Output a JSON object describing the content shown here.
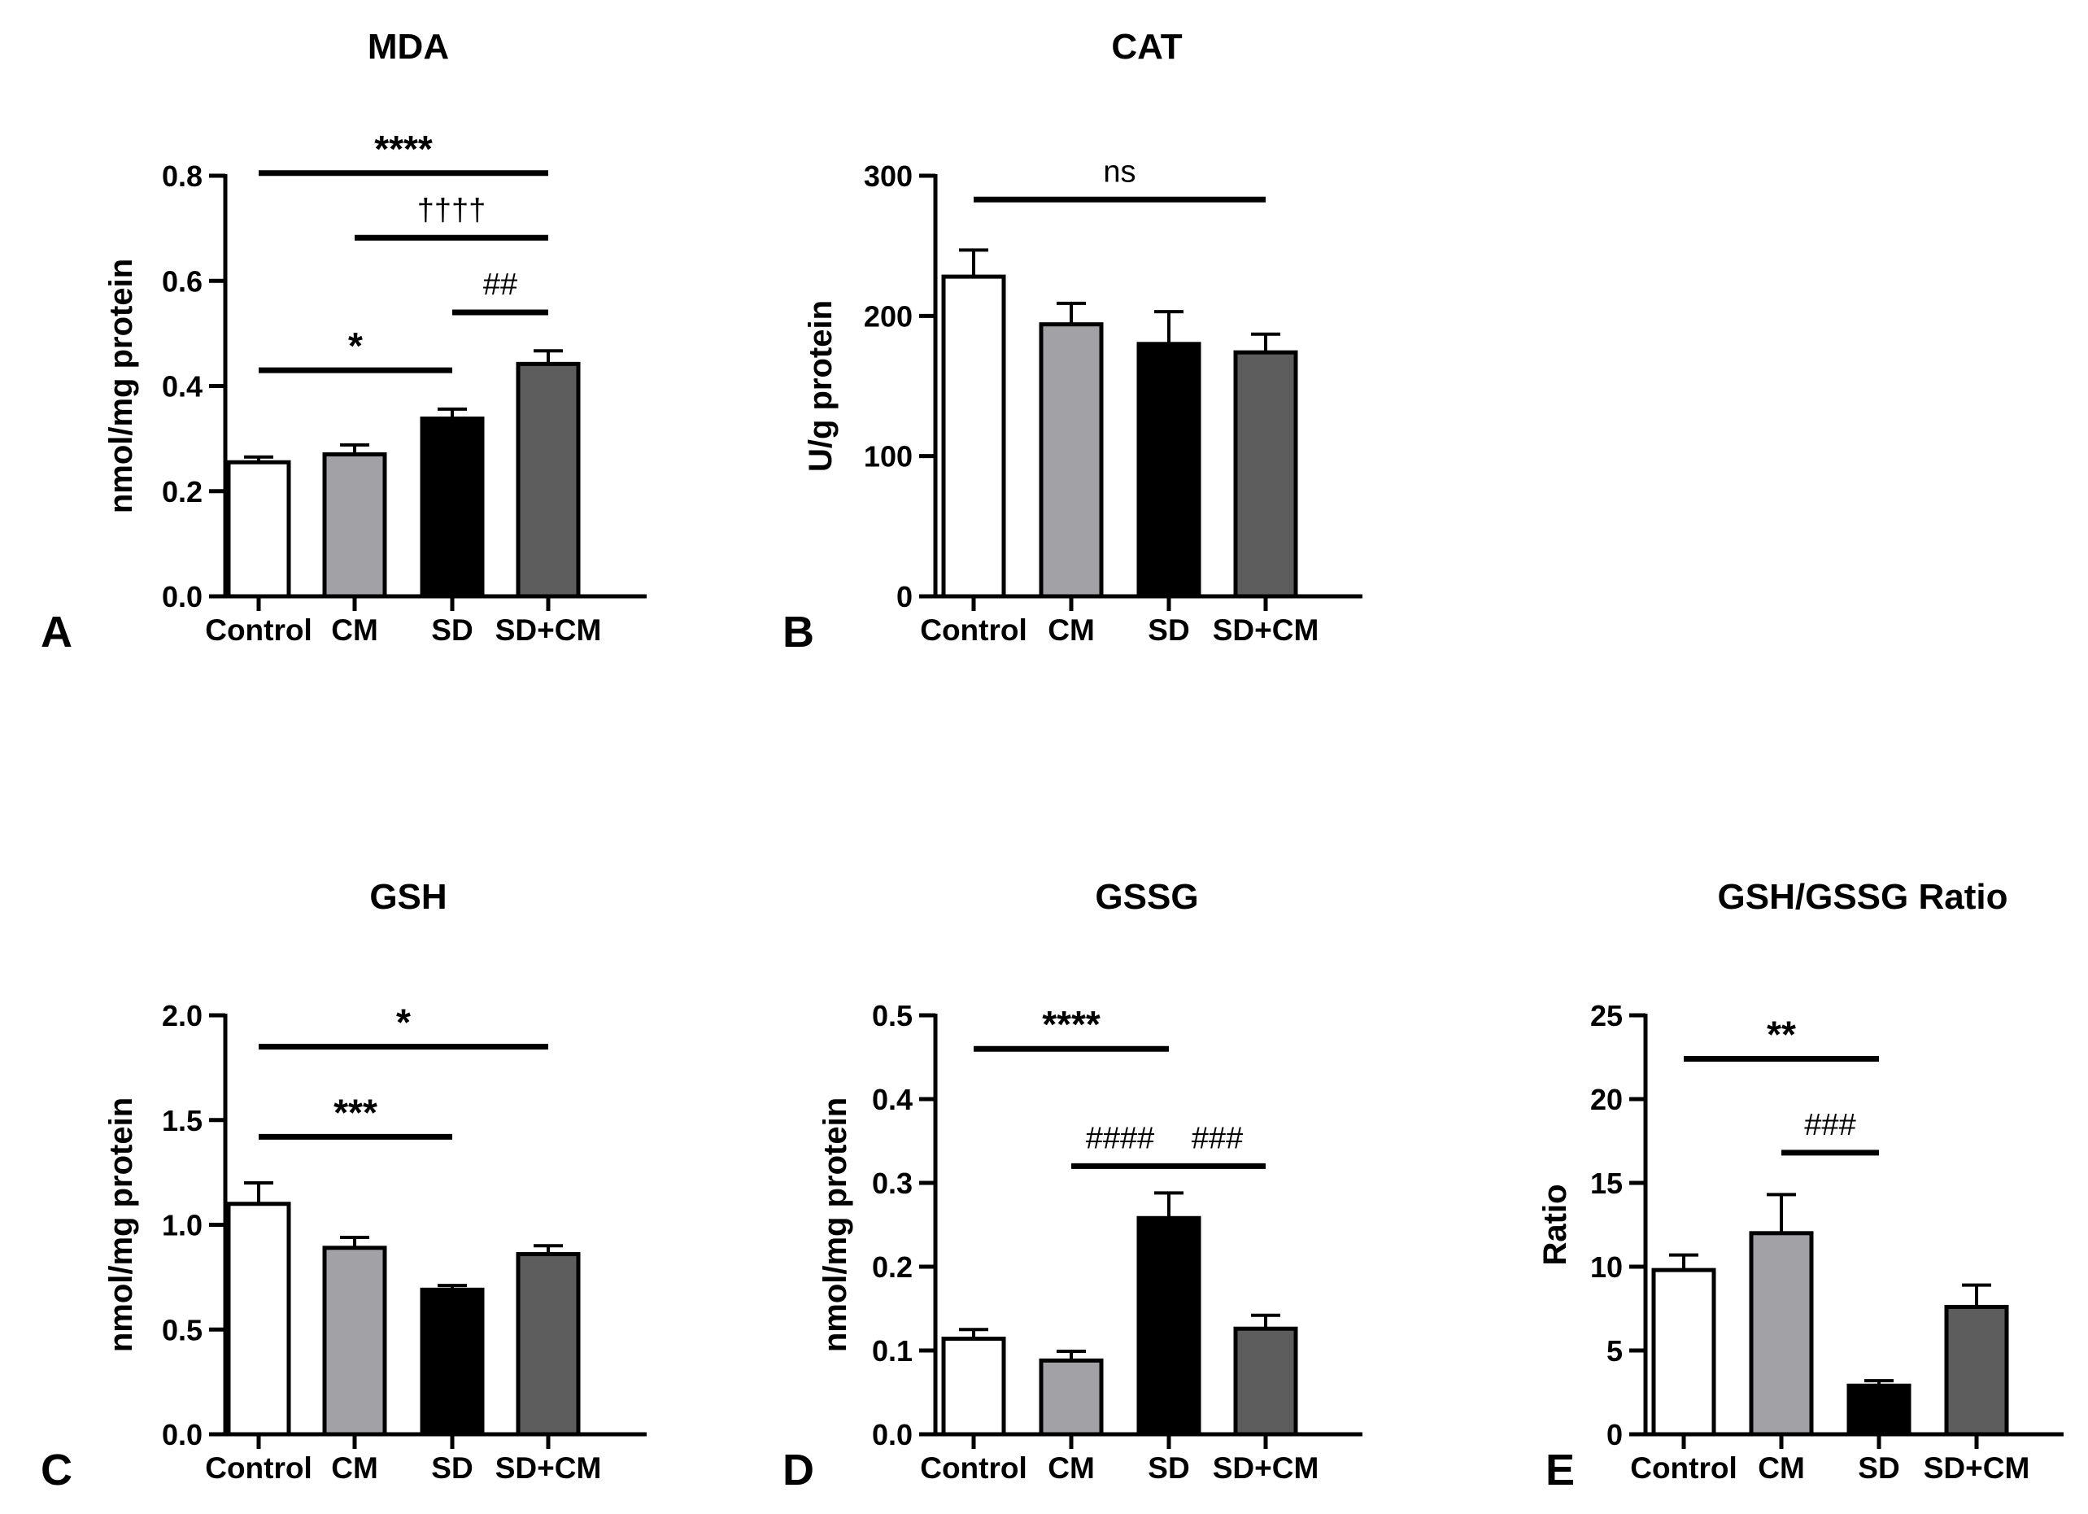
{
  "chart_data": [
    {
      "panel": "A",
      "type": "bar",
      "title": "MDA",
      "ylabel": "nmol/mg protein",
      "categories": [
        "Control",
        "CM",
        "SD",
        "SD+CM"
      ],
      "values": [
        0.255,
        0.27,
        0.338,
        0.442
      ],
      "errors": [
        0.01,
        0.018,
        0.018,
        0.025
      ],
      "ylim": [
        0,
        0.8
      ],
      "yticks": [
        "0.0",
        "0.2",
        "0.4",
        "0.6",
        "0.8"
      ],
      "comparisons": [
        {
          "from": "Control",
          "to": "SD+CM",
          "y": 0.805,
          "label": "****"
        },
        {
          "from": "CM",
          "to": "SD+CM",
          "y": 0.682,
          "label": "††††"
        },
        {
          "from": "SD",
          "to": "SD+CM",
          "y": 0.54,
          "label": "##"
        },
        {
          "from": "Control",
          "to": "SD",
          "y": 0.43,
          "label": "*"
        }
      ]
    },
    {
      "panel": "B",
      "type": "bar",
      "title": "CAT",
      "ylabel": "U/g protein",
      "categories": [
        "Control",
        "CM",
        "SD",
        "SD+CM"
      ],
      "values": [
        228,
        194,
        180,
        174
      ],
      "errors": [
        19,
        15,
        23,
        13
      ],
      "ylim": [
        0,
        300
      ],
      "yticks": [
        "0",
        "100",
        "200",
        "300"
      ],
      "comparisons": [
        {
          "from": "Control",
          "to": "SD+CM",
          "y": 283,
          "label": "ns"
        }
      ]
    },
    {
      "panel": "C",
      "type": "bar",
      "title": "GSH",
      "ylabel": "nmol/mg protein",
      "categories": [
        "Control",
        "CM",
        "SD",
        "SD+CM"
      ],
      "values": [
        1.1,
        0.89,
        0.69,
        0.86
      ],
      "errors": [
        0.1,
        0.05,
        0.02,
        0.04
      ],
      "ylim": [
        0,
        2.0
      ],
      "yticks": [
        "0.0",
        "0.5",
        "1.0",
        "1.5",
        "2.0"
      ],
      "comparisons": [
        {
          "from": "Control",
          "to": "SD+CM",
          "y": 1.85,
          "label": "*"
        },
        {
          "from": "Control",
          "to": "SD",
          "y": 1.42,
          "label": "***"
        }
      ]
    },
    {
      "panel": "D",
      "type": "bar",
      "title": "GSSG",
      "ylabel": "nmol/mg protein",
      "categories": [
        "Control",
        "CM",
        "SD",
        "SD+CM"
      ],
      "values": [
        0.114,
        0.088,
        0.258,
        0.126
      ],
      "errors": [
        0.011,
        0.011,
        0.03,
        0.016
      ],
      "ylim": [
        0,
        0.5
      ],
      "yticks": [
        "0.0",
        "0.1",
        "0.2",
        "0.3",
        "0.4",
        "0.5"
      ],
      "comparisons": [
        {
          "from": "Control",
          "to": "SD",
          "y": 0.46,
          "label": "****"
        },
        {
          "from": "CM",
          "to": "SD",
          "y": 0.32,
          "label": "####"
        },
        {
          "from": "SD",
          "to": "SD+CM",
          "y": 0.32,
          "label": "###"
        }
      ]
    },
    {
      "panel": "E",
      "type": "bar",
      "title": "GSH/GSSG Ratio",
      "ylabel": "Ratio",
      "categories": [
        "Control",
        "CM",
        "SD",
        "SD+CM"
      ],
      "values": [
        9.8,
        12.0,
        2.9,
        7.6
      ],
      "errors": [
        0.9,
        2.3,
        0.3,
        1.3
      ],
      "ylim": [
        0,
        25
      ],
      "yticks": [
        "0",
        "5",
        "10",
        "15",
        "20",
        "25"
      ],
      "comparisons": [
        {
          "from": "Control",
          "to": "SD",
          "y": 22.4,
          "label": "**"
        },
        {
          "from": "CM",
          "to": "SD",
          "y": 16.8,
          "label": "###"
        }
      ]
    }
  ],
  "colors": {
    "Control": "#ffffff",
    "CM": "#a2a2a6",
    "SD": "#000000",
    "SD+CM": "#5d5d5d"
  }
}
